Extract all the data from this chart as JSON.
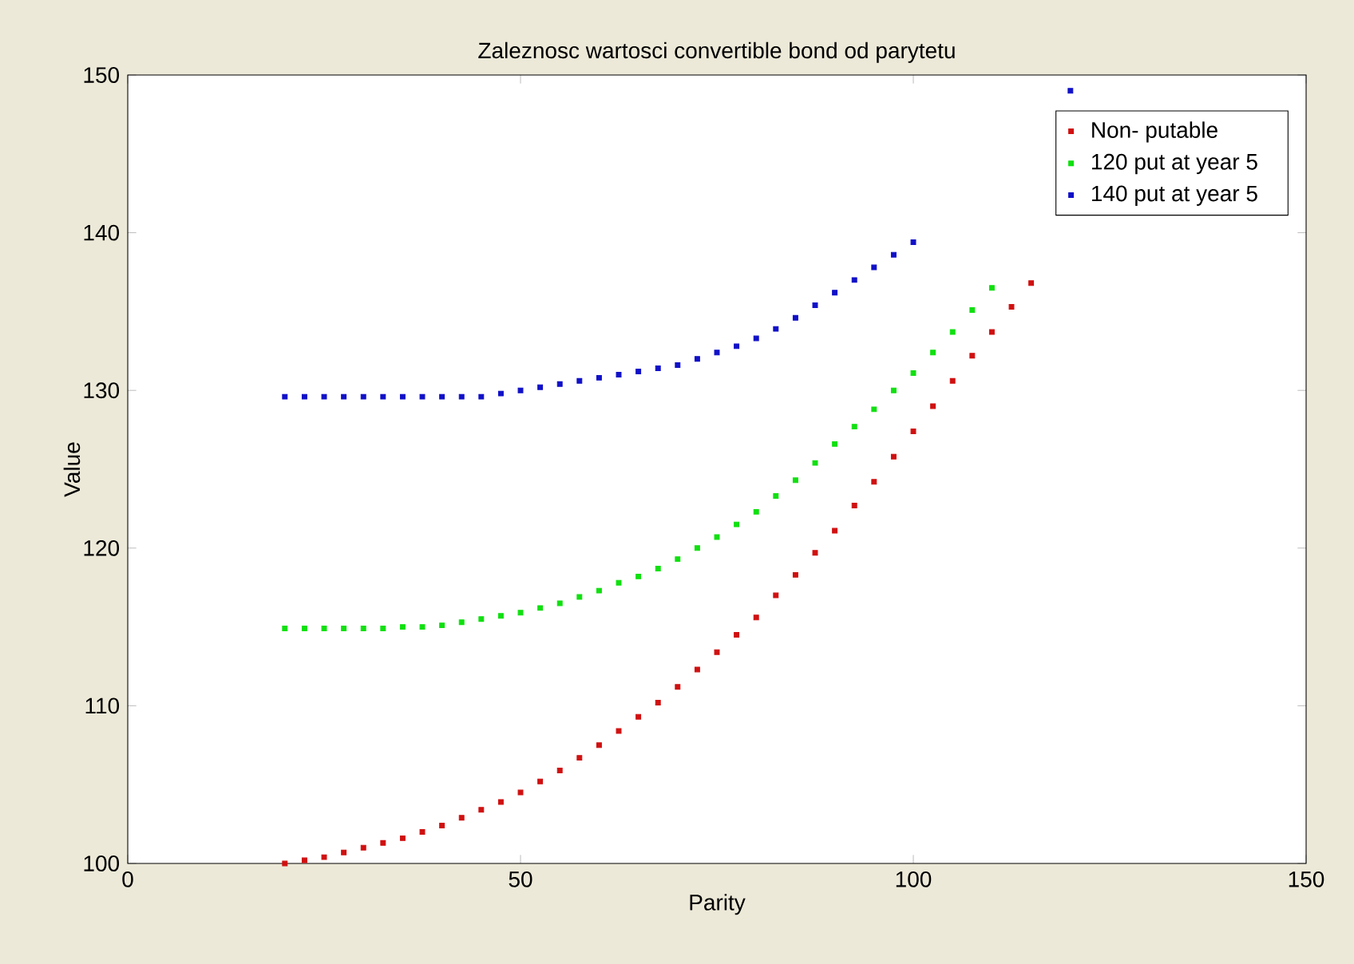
{
  "chart_data": {
    "type": "scatter",
    "title": "Zaleznosc wartosci convertible bond od parytetu",
    "xlabel": "Parity",
    "ylabel": "Value",
    "xlim": [
      0,
      150
    ],
    "ylim": [
      100,
      150
    ],
    "xticks": [
      0,
      50,
      100,
      150
    ],
    "yticks": [
      100,
      110,
      120,
      130,
      140,
      150
    ],
    "legend": "top right",
    "marker": "square",
    "grid": false,
    "series": [
      {
        "name": "Non- putable",
        "color": "#d01010",
        "x": [
          20,
          22.5,
          25,
          27.5,
          30,
          32.5,
          35,
          37.5,
          40,
          42.5,
          45,
          47.5,
          50,
          52.5,
          55,
          57.5,
          60,
          62.5,
          65,
          67.5,
          70,
          72.5,
          75,
          77.5,
          80,
          82.5,
          85,
          87.5,
          90,
          92.5,
          95,
          97.5,
          100,
          102.5,
          105,
          107.5,
          110,
          112.5,
          115
        ],
        "values": [
          100.0,
          100.2,
          100.4,
          100.7,
          101.0,
          101.3,
          101.6,
          102.0,
          102.4,
          102.9,
          103.4,
          103.9,
          104.5,
          105.2,
          105.9,
          106.7,
          107.5,
          108.4,
          109.3,
          110.2,
          111.2,
          112.3,
          113.4,
          114.5,
          115.6,
          117.0,
          118.3,
          119.7,
          121.1,
          122.7,
          124.2,
          125.8,
          127.4,
          129.0,
          130.6,
          132.2,
          133.7,
          135.3,
          136.8
        ]
      },
      {
        "name": "120 put at year 5",
        "color": "#10e010",
        "x": [
          20,
          22.5,
          25,
          27.5,
          30,
          32.5,
          35,
          37.5,
          40,
          42.5,
          45,
          47.5,
          50,
          52.5,
          55,
          57.5,
          60,
          62.5,
          65,
          67.5,
          70,
          72.5,
          75,
          77.5,
          80,
          82.5,
          85,
          87.5,
          90,
          92.5,
          95,
          97.5,
          100,
          102.5,
          105,
          107.5,
          110
        ],
        "values": [
          114.9,
          114.9,
          114.9,
          114.9,
          114.9,
          114.9,
          115.0,
          115.0,
          115.1,
          115.3,
          115.5,
          115.7,
          115.9,
          116.2,
          116.5,
          116.9,
          117.3,
          117.8,
          118.2,
          118.7,
          119.3,
          120.0,
          120.7,
          121.5,
          122.3,
          123.3,
          124.3,
          125.4,
          126.6,
          127.7,
          128.8,
          130.0,
          131.1,
          132.4,
          133.7,
          135.1,
          136.5
        ]
      },
      {
        "name": "140 put at year 5",
        "color": "#1010c8",
        "x": [
          20,
          22.5,
          25,
          27.5,
          30,
          32.5,
          35,
          37.5,
          40,
          42.5,
          45,
          47.5,
          50,
          52.5,
          55,
          57.5,
          60,
          62.5,
          65,
          67.5,
          70,
          72.5,
          75,
          77.5,
          80,
          82.5,
          85,
          87.5,
          90,
          92.5,
          95,
          97.5,
          100,
          120
        ],
        "values": [
          129.6,
          129.6,
          129.6,
          129.6,
          129.6,
          129.6,
          129.6,
          129.6,
          129.6,
          129.6,
          129.6,
          129.8,
          130.0,
          130.2,
          130.4,
          130.6,
          130.8,
          131.0,
          131.2,
          131.4,
          131.6,
          132.0,
          132.4,
          132.8,
          133.3,
          133.9,
          134.6,
          135.4,
          136.2,
          137.0,
          137.8,
          138.6,
          139.4,
          149.0
        ]
      }
    ]
  }
}
